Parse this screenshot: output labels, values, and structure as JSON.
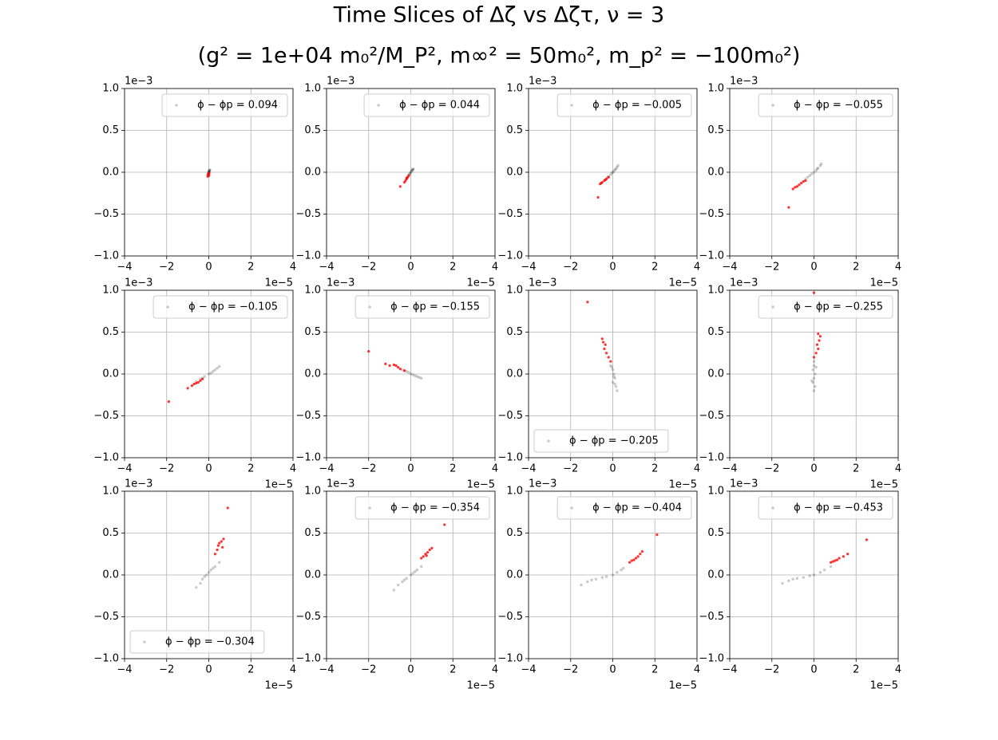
{
  "title": "Time Slices of Δζ vs Δζτ, ν = 3",
  "subtitle": "(g² = 1e+04 m₀²/M_P², m∞² = 50m₀², m_p² = −100m₀²)",
  "chart_data": [
    {
      "type": "scatter",
      "legend": "upper right",
      "grid": true,
      "xlim": [
        -4,
        4
      ],
      "ylim": [
        -1,
        1
      ],
      "x_offset": "1e−5",
      "y_offset": "1e−3",
      "xticks": [
        {
          "value": -4,
          "label": "−4"
        },
        {
          "value": -2,
          "label": "−2"
        },
        0,
        2,
        4
      ],
      "yticks": [
        {
          "value": -1,
          "label": "−1.0"
        },
        {
          "value": -0.5,
          "label": "−0.5"
        },
        {
          "value": 0,
          "label": "0.0"
        },
        0.5,
        {
          "value": 1,
          "label": "1.0"
        }
      ],
      "series": [
        {
          "name": "ϕ − ϕp = 0.094",
          "color": "#000000",
          "x": [
            -0.05,
            -0.03,
            -0.02,
            0,
            0.01,
            0.02,
            0.03,
            0.05,
            -0.01,
            0.04
          ],
          "y": [
            -0.03,
            -0.02,
            -0.01,
            0,
            0.01,
            0.01,
            0.02,
            0.03,
            0,
            0.02
          ]
        },
        {
          "color": "#ff0000",
          "x": [
            0,
            -0.03,
            0.02,
            -0.05,
            0.01
          ],
          "y": [
            -0.02,
            -0.03,
            -0.01,
            -0.05,
            -0.04
          ]
        }
      ]
    },
    {
      "type": "scatter",
      "legend": "upper right",
      "grid": true,
      "xlim": [
        -4,
        4
      ],
      "ylim": [
        -1,
        1
      ],
      "x_offset": "1e−5",
      "y_offset": "1e−3",
      "xticks": [
        {
          "value": -4,
          "label": "−4"
        },
        {
          "value": -2,
          "label": "−2"
        },
        0,
        2,
        4
      ],
      "yticks": [
        {
          "value": -1,
          "label": "−1.0"
        },
        {
          "value": -0.5,
          "label": "−0.5"
        },
        {
          "value": 0,
          "label": "0.0"
        },
        0.5,
        {
          "value": 1,
          "label": "1.0"
        }
      ],
      "series": [
        {
          "name": "ϕ − ϕp = 0.044",
          "color": "#000000",
          "x": [
            -0.12,
            -0.08,
            -0.05,
            -0.02,
            0,
            0.03,
            0.05,
            0.08,
            0.1,
            0.12
          ],
          "y": [
            -0.05,
            -0.03,
            -0.02,
            -0.01,
            0,
            0.01,
            0.02,
            0.03,
            0.03,
            0.04
          ]
        },
        {
          "color": "#ff0000",
          "x": [
            -0.1,
            -0.15,
            -0.2,
            -0.25,
            -0.3,
            -0.2,
            -0.5
          ],
          "y": [
            -0.04,
            -0.06,
            -0.08,
            -0.1,
            -0.12,
            -0.07,
            -0.17
          ]
        }
      ]
    },
    {
      "type": "scatter",
      "legend": "upper right",
      "grid": true,
      "xlim": [
        -4,
        4
      ],
      "ylim": [
        -1,
        1
      ],
      "x_offset": "1e−5",
      "y_offset": "1e−3",
      "xticks": [
        {
          "value": -4,
          "label": "−4"
        },
        {
          "value": -2,
          "label": "−2"
        },
        0,
        2,
        4
      ],
      "yticks": [
        {
          "value": -1,
          "label": "−1.0"
        },
        {
          "value": -0.5,
          "label": "−0.5"
        },
        {
          "value": 0,
          "label": "0.0"
        },
        0.5,
        {
          "value": 1,
          "label": "1.0"
        }
      ],
      "series": [
        {
          "name": "ϕ − ϕp = −0.005",
          "color": "#000000",
          "x": [
            -0.25,
            -0.2,
            -0.1,
            -0.05,
            0,
            0.05,
            0.1,
            0.15,
            0.2,
            0.25
          ],
          "y": [
            -0.06,
            -0.05,
            -0.03,
            -0.01,
            0,
            0.01,
            0.03,
            0.04,
            0.06,
            0.08
          ]
        },
        {
          "color": "#ff0000",
          "x": [
            -0.2,
            -0.3,
            -0.35,
            -0.4,
            -0.5,
            -0.55,
            -0.6,
            -0.7
          ],
          "y": [
            -0.06,
            -0.08,
            -0.09,
            -0.1,
            -0.12,
            -0.13,
            -0.14,
            -0.3
          ]
        }
      ]
    },
    {
      "type": "scatter",
      "legend": "upper right",
      "grid": true,
      "xlim": [
        -4,
        4
      ],
      "ylim": [
        -1,
        1
      ],
      "x_offset": "1e−5",
      "y_offset": "1e−3",
      "xticks": [
        {
          "value": -4,
          "label": "−4"
        },
        {
          "value": -2,
          "label": "−2"
        },
        0,
        2,
        4
      ],
      "yticks": [
        {
          "value": -1,
          "label": "−1.0"
        },
        {
          "value": -0.5,
          "label": "−0.5"
        },
        {
          "value": 0,
          "label": "0.0"
        },
        0.5,
        {
          "value": 1,
          "label": "1.0"
        }
      ],
      "series": [
        {
          "name": "ϕ − ϕp = −0.055",
          "color": "#000000",
          "x": [
            -0.4,
            -0.3,
            -0.2,
            -0.1,
            0,
            0.1,
            0.15,
            0.2,
            0.3,
            0.35
          ],
          "y": [
            -0.08,
            -0.06,
            -0.04,
            -0.02,
            0,
            0.02,
            0.04,
            0.05,
            0.08,
            0.1
          ]
        },
        {
          "color": "#ff0000",
          "x": [
            -0.4,
            -0.5,
            -0.6,
            -0.7,
            -0.8,
            -0.9,
            -1.0,
            -1.2
          ],
          "y": [
            -0.1,
            -0.11,
            -0.13,
            -0.15,
            -0.17,
            -0.18,
            -0.2,
            -0.42
          ]
        }
      ]
    },
    {
      "type": "scatter",
      "legend": "upper right",
      "grid": true,
      "xlim": [
        -4,
        4
      ],
      "ylim": [
        -1,
        1
      ],
      "x_offset": "1e−5",
      "y_offset": "1e−3",
      "xticks": [
        {
          "value": -4,
          "label": "−4"
        },
        {
          "value": -2,
          "label": "−2"
        },
        0,
        2,
        4
      ],
      "yticks": [
        {
          "value": -1,
          "label": "−1.0"
        },
        {
          "value": -0.5,
          "label": "−0.5"
        },
        {
          "value": 0,
          "label": "0.0"
        },
        0.5,
        {
          "value": 1,
          "label": "1.0"
        }
      ],
      "series": [
        {
          "name": "ϕ − ϕp = −0.105",
          "color": "#000000",
          "x": [
            -0.6,
            -0.4,
            -0.3,
            -0.2,
            0,
            0.1,
            0.2,
            0.3,
            0.4,
            0.5
          ],
          "y": [
            -0.09,
            -0.06,
            -0.05,
            -0.03,
            0,
            0.01,
            0.03,
            0.05,
            0.07,
            0.09
          ]
        },
        {
          "color": "#ff0000",
          "x": [
            -0.3,
            -0.4,
            -0.5,
            -0.6,
            -0.7,
            -0.8,
            -1.0,
            -1.9
          ],
          "y": [
            -0.06,
            -0.08,
            -0.1,
            -0.11,
            -0.12,
            -0.14,
            -0.17,
            -0.33
          ]
        }
      ]
    },
    {
      "type": "scatter",
      "legend": "upper right",
      "grid": true,
      "xlim": [
        -4,
        4
      ],
      "ylim": [
        -1,
        1
      ],
      "x_offset": "1e−5",
      "y_offset": "1e−3",
      "xticks": [
        {
          "value": -4,
          "label": "−4"
        },
        {
          "value": -2,
          "label": "−2"
        },
        0,
        2,
        4
      ],
      "yticks": [
        {
          "value": -1,
          "label": "−1.0"
        },
        {
          "value": -0.5,
          "label": "−0.5"
        },
        {
          "value": 0,
          "label": "0.0"
        },
        0.5,
        {
          "value": 1,
          "label": "1.0"
        }
      ],
      "series": [
        {
          "name": "ϕ − ϕp = −0.155",
          "color": "#000000",
          "x": [
            -0.4,
            -0.3,
            -0.2,
            -0.1,
            0,
            0.1,
            0.2,
            0.3,
            0.4,
            0.5
          ],
          "y": [
            0.05,
            0.04,
            0.03,
            0.02,
            0,
            -0.01,
            -0.02,
            -0.03,
            -0.04,
            -0.05
          ]
        },
        {
          "color": "#ff0000",
          "x": [
            -0.3,
            -0.5,
            -0.6,
            -0.7,
            -0.8,
            -1.0,
            -1.2,
            -2.0
          ],
          "y": [
            0.04,
            0.06,
            0.08,
            0.1,
            0.11,
            0.1,
            0.12,
            0.27
          ]
        }
      ]
    },
    {
      "type": "scatter",
      "legend": "lower left",
      "grid": true,
      "xlim": [
        -4,
        4
      ],
      "ylim": [
        -1,
        1
      ],
      "x_offset": "1e−5",
      "y_offset": "1e−3",
      "xticks": [
        {
          "value": -4,
          "label": "−4"
        },
        {
          "value": -2,
          "label": "−2"
        },
        0,
        2,
        4
      ],
      "yticks": [
        {
          "value": -1,
          "label": "−1.0"
        },
        {
          "value": -0.5,
          "label": "−0.5"
        },
        {
          "value": 0,
          "label": "0.0"
        },
        0.5,
        {
          "value": 1,
          "label": "1.0"
        }
      ],
      "series": [
        {
          "name": "ϕ − ϕp = −0.205",
          "color": "#000000",
          "x": [
            -0.1,
            0,
            0.05,
            0.1,
            0,
            0.1,
            0.15,
            0.2,
            -0.05,
            0.05
          ],
          "y": [
            0.1,
            0.05,
            0,
            -0.05,
            -0.1,
            -0.12,
            -0.15,
            -0.2,
            0.08,
            -0.03
          ]
        },
        {
          "color": "#ff0000",
          "x": [
            -0.1,
            -0.2,
            -0.3,
            -0.4,
            -0.35,
            -0.45,
            -0.5,
            -1.2
          ],
          "y": [
            0.15,
            0.2,
            0.25,
            0.3,
            0.35,
            0.38,
            0.42,
            0.86
          ]
        }
      ]
    },
    {
      "type": "scatter",
      "legend": "upper right",
      "grid": true,
      "xlim": [
        -4,
        4
      ],
      "ylim": [
        -1,
        1
      ],
      "x_offset": "1e−5",
      "y_offset": "1e−3",
      "xticks": [
        {
          "value": -4,
          "label": "−4"
        },
        {
          "value": -2,
          "label": "−2"
        },
        0,
        2,
        4
      ],
      "yticks": [
        {
          "value": -1,
          "label": "−1.0"
        },
        {
          "value": -0.5,
          "label": "−0.5"
        },
        {
          "value": 0,
          "label": "0.0"
        },
        0.5,
        {
          "value": 1,
          "label": "1.0"
        }
      ],
      "series": [
        {
          "name": "ϕ − ϕp = −0.255",
          "color": "#000000",
          "x": [
            0,
            0,
            -0.05,
            0.05,
            0,
            -0.05,
            0.05,
            0,
            0.1,
            -0.1
          ],
          "y": [
            0.15,
            0.1,
            0.05,
            0,
            -0.05,
            -0.1,
            -0.15,
            -0.2,
            0.08,
            -0.08
          ]
        },
        {
          "color": "#ff0000",
          "x": [
            0,
            0.1,
            0.2,
            0.15,
            0.25,
            0.3,
            0.2,
            0
          ],
          "y": [
            0.2,
            0.25,
            0.3,
            0.35,
            0.4,
            0.45,
            0.48,
            0.97
          ]
        }
      ]
    },
    {
      "type": "scatter",
      "legend": "lower left",
      "grid": true,
      "xlim": [
        -4,
        4
      ],
      "ylim": [
        -1,
        1
      ],
      "x_offset": "1e−5",
      "y_offset": "1e−3",
      "xticks": [
        {
          "value": -4,
          "label": "−4"
        },
        {
          "value": -2,
          "label": "−2"
        },
        0,
        2,
        4
      ],
      "yticks": [
        {
          "value": -1,
          "label": "−1.0"
        },
        {
          "value": -0.5,
          "label": "−0.5"
        },
        {
          "value": 0,
          "label": "0.0"
        },
        0.5,
        {
          "value": 1,
          "label": "1.0"
        }
      ],
      "series": [
        {
          "name": "ϕ − ϕp = −0.304",
          "color": "#000000",
          "x": [
            -0.6,
            -0.4,
            -0.3,
            -0.2,
            -0.1,
            0,
            0.1,
            0.2,
            0.3,
            0.5
          ],
          "y": [
            -0.15,
            -0.1,
            -0.05,
            -0.02,
            0,
            0.03,
            0.06,
            0.08,
            0.1,
            0.15
          ]
        },
        {
          "color": "#ff0000",
          "x": [
            0.3,
            0.4,
            0.45,
            0.5,
            0.6,
            0.65,
            0.7,
            0.9
          ],
          "y": [
            0.25,
            0.3,
            0.35,
            0.38,
            0.4,
            0.33,
            0.43,
            0.8
          ]
        }
      ]
    },
    {
      "type": "scatter",
      "legend": "upper right",
      "grid": true,
      "xlim": [
        -4,
        4
      ],
      "ylim": [
        -1,
        1
      ],
      "x_offset": "1e−5",
      "y_offset": "1e−3",
      "xticks": [
        {
          "value": -4,
          "label": "−4"
        },
        {
          "value": -2,
          "label": "−2"
        },
        0,
        2,
        4
      ],
      "yticks": [
        {
          "value": -1,
          "label": "−1.0"
        },
        {
          "value": -0.5,
          "label": "−0.5"
        },
        {
          "value": 0,
          "label": "0.0"
        },
        0.5,
        {
          "value": 1,
          "label": "1.0"
        }
      ],
      "series": [
        {
          "name": "ϕ − ϕp = −0.354",
          "color": "#000000",
          "x": [
            -0.8,
            -0.6,
            -0.4,
            -0.3,
            -0.2,
            0,
            0.1,
            0.2,
            0.3,
            0.5
          ],
          "y": [
            -0.18,
            -0.12,
            -0.08,
            -0.06,
            -0.04,
            0,
            0.02,
            0.04,
            0.06,
            0.1
          ]
        },
        {
          "color": "#ff0000",
          "x": [
            0.5,
            0.6,
            0.7,
            0.8,
            0.9,
            1.0,
            0.75,
            1.6
          ],
          "y": [
            0.2,
            0.22,
            0.25,
            0.27,
            0.3,
            0.32,
            0.23,
            0.6
          ]
        }
      ]
    },
    {
      "type": "scatter",
      "legend": "upper right",
      "grid": true,
      "xlim": [
        -4,
        4
      ],
      "ylim": [
        -1,
        1
      ],
      "x_offset": "1e−5",
      "y_offset": "1e−3",
      "xticks": [
        {
          "value": -4,
          "label": "−4"
        },
        {
          "value": -2,
          "label": "−2"
        },
        0,
        2,
        4
      ],
      "yticks": [
        {
          "value": -1,
          "label": "−1.0"
        },
        {
          "value": -0.5,
          "label": "−0.5"
        },
        {
          "value": 0,
          "label": "0.0"
        },
        0.5,
        {
          "value": 1,
          "label": "1.0"
        }
      ],
      "series": [
        {
          "name": "ϕ − ϕp = −0.404",
          "color": "#000000",
          "x": [
            -1.5,
            -1.2,
            -1.0,
            -0.8,
            -0.5,
            -0.3,
            0,
            0.2,
            0.4,
            0.5
          ],
          "y": [
            -0.12,
            -0.08,
            -0.06,
            -0.05,
            -0.03,
            -0.02,
            0,
            0.03,
            0.06,
            0.08
          ]
        },
        {
          "color": "#ff0000",
          "x": [
            0.8,
            0.9,
            1.0,
            1.1,
            1.2,
            1.3,
            1.4,
            2.1
          ],
          "y": [
            0.15,
            0.17,
            0.18,
            0.2,
            0.22,
            0.25,
            0.28,
            0.48
          ]
        }
      ]
    },
    {
      "type": "scatter",
      "legend": "upper right",
      "grid": true,
      "xlim": [
        -4,
        4
      ],
      "ylim": [
        -1,
        1
      ],
      "x_offset": "1e−5",
      "y_offset": "1e−3",
      "xticks": [
        {
          "value": -4,
          "label": "−4"
        },
        {
          "value": -2,
          "label": "−2"
        },
        0,
        2,
        4
      ],
      "yticks": [
        {
          "value": -1,
          "label": "−1.0"
        },
        {
          "value": -0.5,
          "label": "−0.5"
        },
        {
          "value": 0,
          "label": "0.0"
        },
        0.5,
        {
          "value": 1,
          "label": "1.0"
        }
      ],
      "series": [
        {
          "name": "ϕ − ϕp = −0.453",
          "color": "#000000",
          "x": [
            -1.5,
            -1.2,
            -1.0,
            -0.8,
            -0.5,
            -0.2,
            0,
            0.3,
            0.5,
            0.8
          ],
          "y": [
            -0.1,
            -0.07,
            -0.05,
            -0.04,
            -0.03,
            -0.01,
            0,
            0.03,
            0.06,
            0.1
          ]
        },
        {
          "color": "#ff0000",
          "x": [
            0.8,
            0.9,
            1.0,
            1.1,
            1.2,
            1.4,
            1.6,
            2.5
          ],
          "y": [
            0.15,
            0.16,
            0.17,
            0.18,
            0.2,
            0.22,
            0.25,
            0.42
          ]
        }
      ]
    }
  ]
}
